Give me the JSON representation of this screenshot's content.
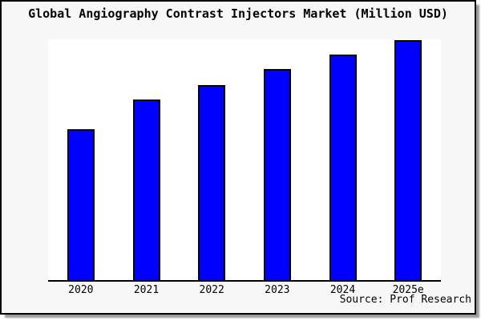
{
  "page": {
    "title": "Global Angiography Contrast Injectors Market (Million USD)",
    "source_note": "Source: Prof Research"
  },
  "colors": {
    "page_background": "#f7f7f7",
    "plot_background": "#ffffff",
    "bar_fill": "#0000fe",
    "bar_border": "#000000",
    "axis": "#000000",
    "text": "#000000",
    "frame_border": "#000000"
  },
  "chart_data": {
    "type": "bar",
    "title": "Global Angiography Contrast Injectors Market (Million USD)",
    "categories": [
      "2020",
      "2021",
      "2022",
      "2023",
      "2024",
      "2025e"
    ],
    "values": [
      62.7,
      75.0,
      81.0,
      87.7,
      93.7,
      99.7
    ],
    "series_note": "no numeric y-axis shown; values are relative bar heights in % of plot height",
    "xlabel": "",
    "ylabel": "",
    "ylim": [
      0,
      100
    ],
    "grid": false,
    "legend": false,
    "y_axis_ticks": [],
    "source_note": "Source: Prof Research"
  }
}
